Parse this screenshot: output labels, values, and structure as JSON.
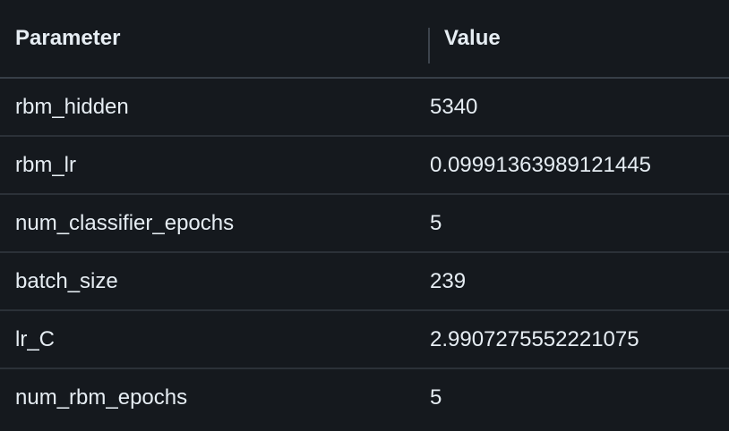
{
  "header": {
    "param_label": "Parameter",
    "value_label": "Value"
  },
  "rows": [
    {
      "param": "rbm_hidden",
      "value": "5340"
    },
    {
      "param": "rbm_lr",
      "value": "0.09991363989121445"
    },
    {
      "param": "num_classifier_epochs",
      "value": "5"
    },
    {
      "param": "batch_size",
      "value": "239"
    },
    {
      "param": "lr_C",
      "value": "2.9907275552221075"
    },
    {
      "param": "num_rbm_epochs",
      "value": "5"
    }
  ],
  "colors": {
    "background": "#15191e",
    "text": "#e6edf3",
    "row_border": "#2b3138"
  }
}
